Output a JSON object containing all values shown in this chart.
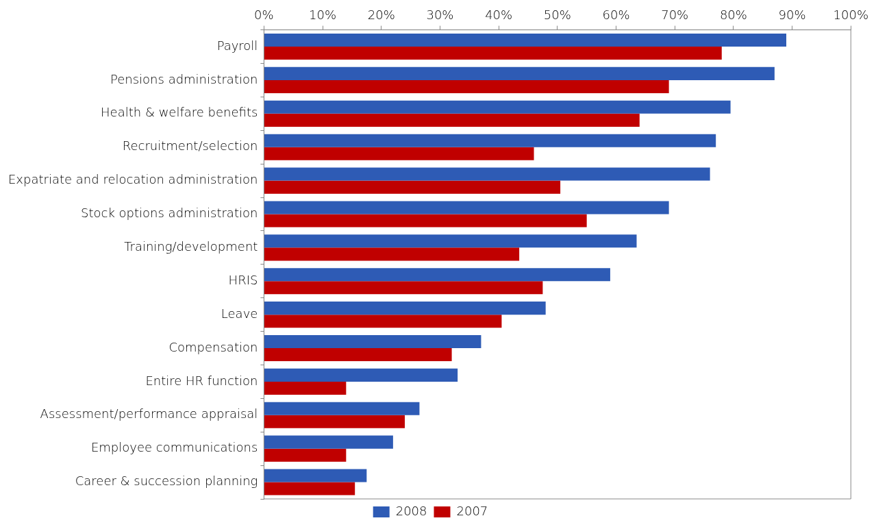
{
  "chart_data": {
    "type": "bar",
    "orientation": "horizontal",
    "categories": [
      "Payroll",
      "Pensions administration",
      "Health & welfare benefits",
      "Recruitment/selection",
      "Expatriate and relocation administration",
      "Stock options administration",
      "Training/development",
      "HRIS",
      "Leave",
      "Compensation",
      "Entire HR function",
      "Assessment/performance appraisal",
      "Employee communications",
      "Career & succession planning"
    ],
    "series": [
      {
        "name": "2008",
        "color": "#2e5bb5",
        "values": [
          89,
          87,
          79.5,
          77,
          76,
          69,
          63.5,
          59,
          48,
          37,
          33,
          26.5,
          22,
          17.5
        ]
      },
      {
        "name": "2007",
        "color": "#c00000",
        "values": [
          78,
          69,
          64,
          46,
          50.5,
          55,
          43.5,
          47.5,
          40.5,
          32,
          14,
          24,
          14,
          15.5
        ]
      }
    ],
    "xlim": [
      0,
      100
    ],
    "xticks": [
      {
        "value": 0,
        "label": "0%"
      },
      {
        "value": 10,
        "label": "10%"
      },
      {
        "value": 20,
        "label": "20%"
      },
      {
        "value": 30,
        "label": "30%"
      },
      {
        "value": 40,
        "label": "40%"
      },
      {
        "value": 50,
        "label": "50%"
      },
      {
        "value": 60,
        "label": "60%"
      },
      {
        "value": 70,
        "label": "70%"
      },
      {
        "value": 80,
        "label": "80%"
      },
      {
        "value": 90,
        "label": "90%"
      },
      {
        "value": 100,
        "label": "100%"
      }
    ],
    "grid": false,
    "legend": "bottom"
  }
}
